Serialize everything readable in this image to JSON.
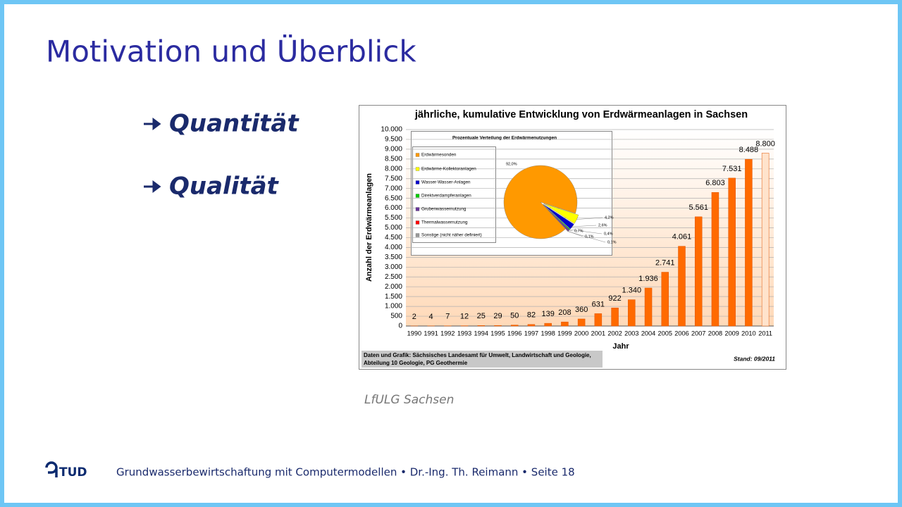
{
  "header": {
    "title": "Motivation und Überblick"
  },
  "bullets": [
    "Quantität",
    "Qualität"
  ],
  "chart_data": [
    {
      "type": "bar",
      "title": "jährliche, kumulative Entwicklung von Erdwärmeanlagen in Sachsen",
      "x_label": "Jahr",
      "y_label": "Anzahl der Erdwärmeanlagen",
      "categories": [
        "1990",
        "1991",
        "1992",
        "1993",
        "1994",
        "1995",
        "1996",
        "1997",
        "1998",
        "1999",
        "2000",
        "2001",
        "2002",
        "2003",
        "2004",
        "2005",
        "2006",
        "2007",
        "2008",
        "2009",
        "2010",
        "2011"
      ],
      "values": [
        2,
        4,
        7,
        12,
        25,
        29,
        50,
        82,
        139,
        208,
        360,
        631,
        922,
        1340,
        1936,
        2741,
        4061,
        5561,
        6803,
        7531,
        8488,
        8800
      ],
      "value_labels": [
        "2",
        "4",
        "7",
        "12",
        "25",
        "29",
        "50",
        "82",
        "139",
        "208",
        "360",
        "631",
        "922",
        "1.340",
        "1.936",
        "2.741",
        "4.061",
        "5.561",
        "6.803",
        "7.531",
        "8.488",
        "8.800"
      ],
      "colors": [
        "#ff6a00",
        "#ff6a00",
        "#ff6a00",
        "#ff6a00",
        "#ff6a00",
        "#ff6a00",
        "#ff6a00",
        "#ff6a00",
        "#ff6a00",
        "#ff6a00",
        "#ff6a00",
        "#ff6a00",
        "#ff6a00",
        "#ff6a00",
        "#ff6a00",
        "#ff6a00",
        "#ff6a00",
        "#ff6a00",
        "#ff6a00",
        "#ff6a00",
        "#ff6a00",
        "#ffe3cc"
      ],
      "ylim": [
        0,
        10000
      ],
      "yticks": [
        0,
        500,
        {
          "value": 1000,
          "label": "1.000"
        },
        {
          "value": 1500,
          "label": "1.500"
        },
        {
          "value": 2000,
          "label": "2.000"
        },
        {
          "value": 2500,
          "label": "2.500"
        },
        {
          "value": 3000,
          "label": "3.000"
        },
        {
          "value": 3500,
          "label": "3.500"
        },
        {
          "value": 4000,
          "label": "4.000"
        },
        {
          "value": 4500,
          "label": "4.500"
        },
        {
          "value": 5000,
          "label": "5.000"
        },
        {
          "value": 5500,
          "label": "5.500"
        },
        {
          "value": 6000,
          "label": "6.000"
        },
        {
          "value": 6500,
          "label": "6.500"
        },
        {
          "value": 7000,
          "label": "7.000"
        },
        {
          "value": 7500,
          "label": "7.500"
        },
        {
          "value": 8000,
          "label": "8.000"
        },
        {
          "value": 8500,
          "label": "8.500"
        },
        {
          "value": 9000,
          "label": "9.000"
        },
        {
          "value": 9500,
          "label": "9.500"
        },
        {
          "value": 10000,
          "label": "10.000"
        }
      ],
      "grid": true,
      "source": [
        "Daten und Grafik: Sächsisches Landesamt für Umwelt, Landwirtschaft und Geologie,",
        "Abteilung 10 Geologie, PG Geothermie"
      ],
      "note": "Stand: 09/2011"
    },
    {
      "type": "pie",
      "title": "Prozentuale Verteilung der Erdwärmenutzungen",
      "categories": [
        "Erdwärmesonden",
        "Erdwärme-Kollektoranlagen",
        "Wasser-Wasser-Anlagen",
        "Direktverdampferanlagen",
        "Grubenwassernutzung",
        "Thermalwassernutzung",
        "Sonstige (nicht näher definiert)"
      ],
      "values": [
        92.0,
        4.2,
        2.6,
        0.4,
        0.7,
        0.1,
        0.1
      ],
      "value_labels": [
        "92,0%",
        "4,2%",
        "2,6%",
        "0,4%",
        "0,7%",
        "0,1%",
        "0,1%"
      ],
      "colors": [
        "#ff9900",
        "#ffff00",
        "#0000cc",
        "#00cc00",
        "#663399",
        "#ff0000",
        "#999999"
      ]
    }
  ],
  "caption": "LfULG Sachsen",
  "footer": {
    "logo": "TUD",
    "text": "Grundwasserbewirtschaftung mit Computermodellen • Dr.-Ing. Th. Reimann • Seite 18"
  }
}
